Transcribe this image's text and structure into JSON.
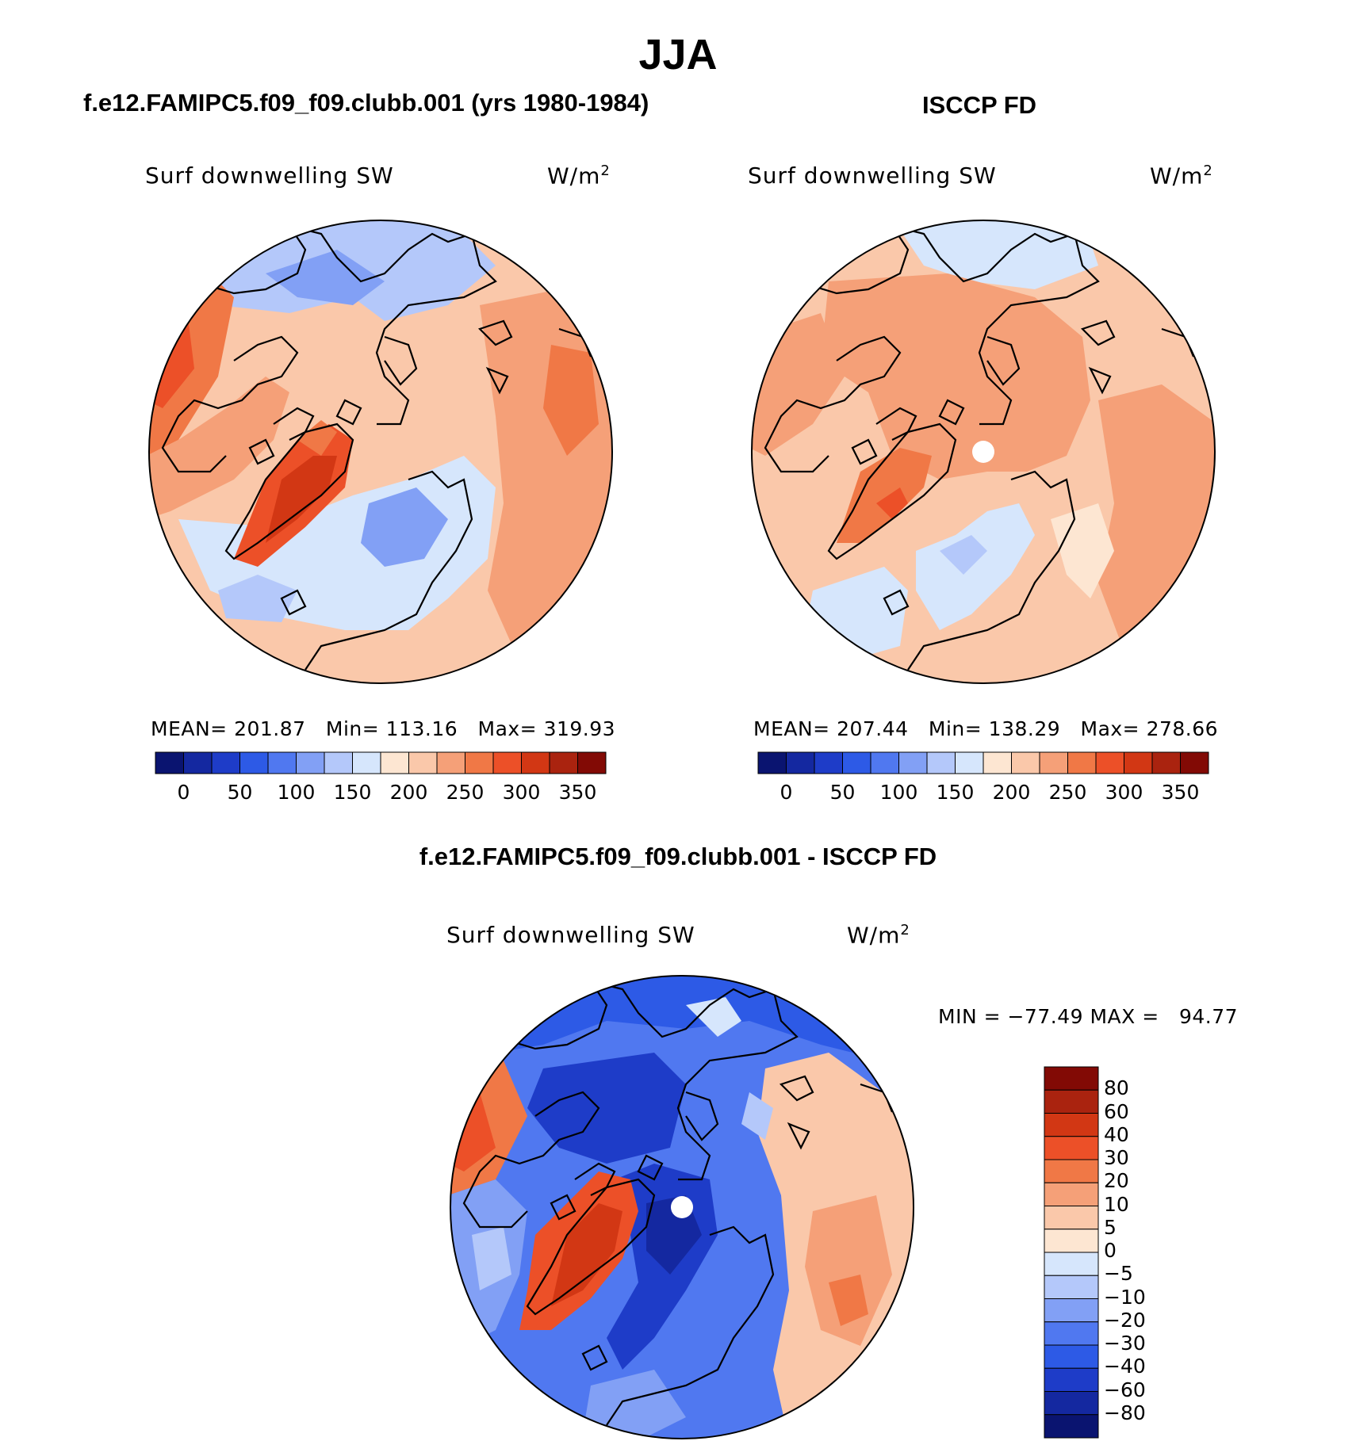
{
  "figure": {
    "title": "JJA",
    "case_title": "f.e12.FAMIPC5.f09_f09.clubb.001 (yrs 1980-1984)",
    "obs_title": "ISCCP FD",
    "diff_title": "f.e12.FAMIPC5.f09_f09.clubb.001 - ISCCP FD"
  },
  "panels": [
    {
      "id": "model",
      "variable": "Surf downwelling SW",
      "units_base": "W/m",
      "units_exp": "2",
      "mean_label": "MEAN=",
      "mean": "201.87",
      "min_label": "Min=",
      "min": "113.16",
      "max_label": "Max=",
      "max": "319.93"
    },
    {
      "id": "obs",
      "variable": "Surf downwelling SW",
      "units_base": "W/m",
      "units_exp": "2",
      "mean_label": "MEAN=",
      "mean": "207.44",
      "min_label": "Min=",
      "min": "138.29",
      "max_label": "Max=",
      "max": "278.66"
    },
    {
      "id": "diff",
      "variable": "Surf downwelling SW",
      "units_base": "W/m",
      "units_exp": "2",
      "minmax_text": "MIN = −77.49 MAX =   94.77"
    }
  ],
  "colorbar_abs": {
    "tick_labels": [
      "0",
      "50",
      "100",
      "150",
      "200",
      "250",
      "300",
      "350"
    ],
    "colors": [
      "#0a1470",
      "#1428a0",
      "#1e3cc8",
      "#2d5ae6",
      "#5078f0",
      "#82a0f5",
      "#b4c8fa",
      "#d6e6fc",
      "#fde6d2",
      "#fac8aa",
      "#f5a078",
      "#f07846",
      "#ec5028",
      "#d23714",
      "#aa230f",
      "#820a05"
    ]
  },
  "colorbar_diff": {
    "level_labels": [
      "80",
      "60",
      "40",
      "30",
      "20",
      "10",
      "5",
      "0",
      "−5",
      "−10",
      "−20",
      "−30",
      "−40",
      "−60",
      "−80"
    ],
    "colors": [
      "#820a05",
      "#aa230f",
      "#d23714",
      "#ec5028",
      "#f07846",
      "#f5a078",
      "#fac8aa",
      "#fde6d2",
      "#d6e6fc",
      "#b4c8fa",
      "#82a0f5",
      "#5078f0",
      "#2d5ae6",
      "#1e3cc8",
      "#1428a0",
      "#0a1470"
    ]
  }
}
